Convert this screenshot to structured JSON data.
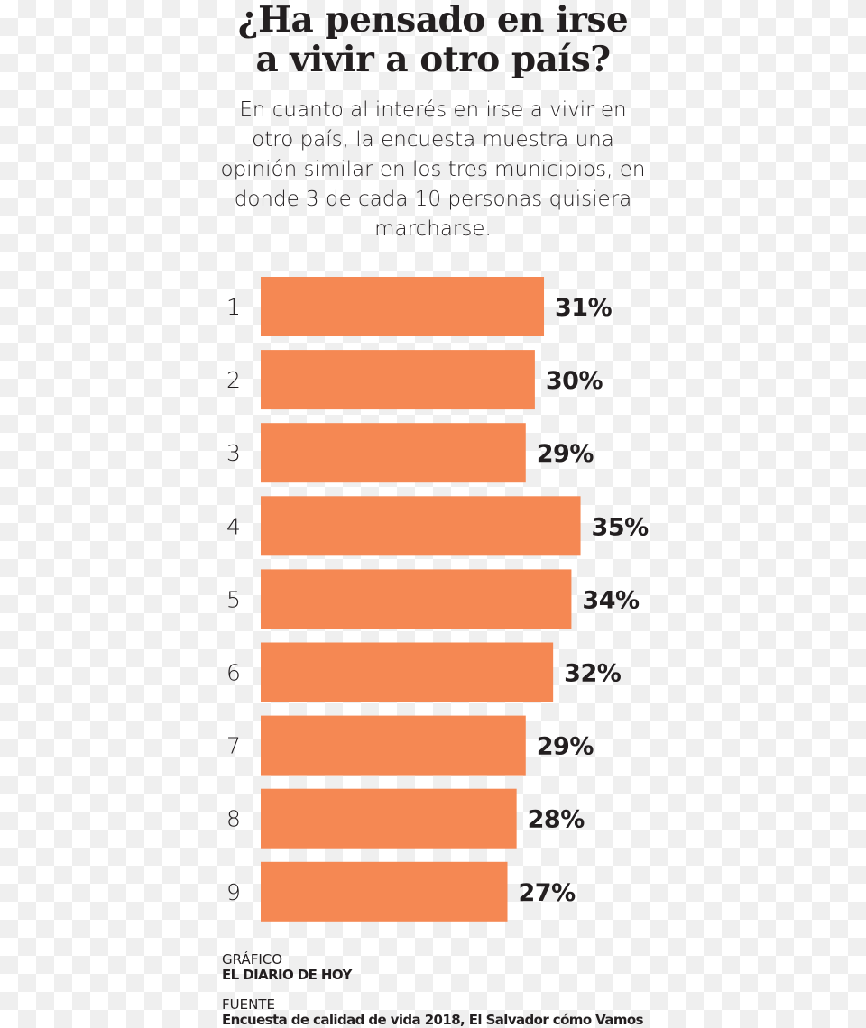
{
  "chart_data": {
    "type": "bar",
    "orientation": "horizontal",
    "title": "¿Ha pensado en irse a vivir a otro país?",
    "subtitle": "En cuanto al interés en irse a vivir en otro país, la encuesta muestra una opinión similar en los tres municipios, en donde 3 de cada 10 personas quisiera marcharse.",
    "categories": [
      "1",
      "2",
      "3",
      "4",
      "5",
      "6",
      "7",
      "8",
      "9"
    ],
    "values": [
      31,
      30,
      29,
      35,
      34,
      32,
      29,
      28,
      27
    ],
    "value_labels": [
      "31%",
      "30%",
      "29%",
      "35%",
      "34%",
      "32%",
      "29%",
      "28%",
      "27%"
    ],
    "unit": "%",
    "bar_color": "#f58853",
    "grid": false
  },
  "credits": {
    "grafico_label": "GRÁFICO",
    "grafico_value": "EL DIARIO DE HOY",
    "fuente_label": "FUENTE",
    "fuente_value": "Encuesta de calidad de vida 2018, El Salvador cómo Vamos"
  }
}
